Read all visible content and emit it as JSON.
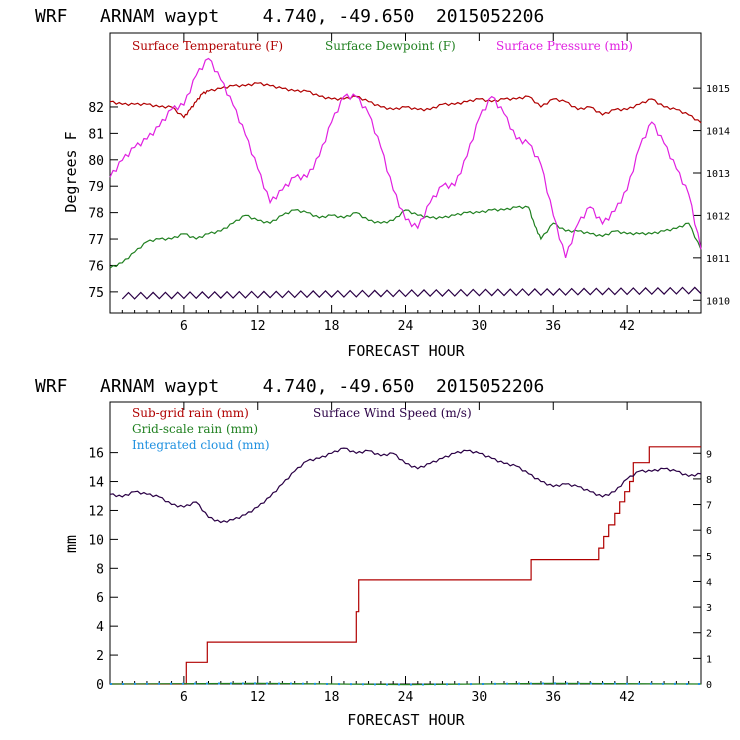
{
  "chart_data": [
    {
      "type": "line",
      "title": "WRF   ARNAM waypt    4.740, -49.650  2015052206",
      "xlabel": "FORECAST HOUR",
      "ylabel": "Degrees F",
      "xlim": [
        0,
        48
      ],
      "ylim": [
        74.2,
        84.8
      ],
      "y2lim": [
        1009.7,
        1016.3
      ],
      "x_ticks": [
        "6",
        "12",
        "18",
        "24",
        "30",
        "36",
        "42"
      ],
      "y_ticks": [
        "75",
        "76",
        "77",
        "78",
        "79",
        "80",
        "81",
        "82"
      ],
      "y2_ticks": [
        "1010",
        "1011",
        "1012",
        "1013",
        "1014",
        "1015"
      ],
      "grid": false,
      "legend_placement": "top-left",
      "series": [
        {
          "name": "Surface Temperature (F)",
          "axis": "left",
          "color": "#b00000",
          "x": [
            0,
            1,
            2,
            3,
            4,
            5,
            6,
            6.5,
            7,
            7.5,
            8,
            9,
            10,
            11,
            12,
            13,
            14,
            15,
            16,
            17,
            18,
            19,
            20,
            21,
            22,
            23,
            24,
            25,
            26,
            27,
            28,
            29,
            30,
            31,
            32,
            33,
            34,
            35,
            36,
            37,
            38,
            39,
            40,
            41,
            42,
            43,
            44,
            45,
            46,
            47,
            48
          ],
          "values": [
            82.2,
            82.1,
            82.1,
            82.1,
            82.0,
            82.0,
            81.6,
            81.9,
            82.2,
            82.5,
            82.6,
            82.7,
            82.8,
            82.8,
            82.9,
            82.8,
            82.7,
            82.6,
            82.6,
            82.4,
            82.3,
            82.3,
            82.4,
            82.2,
            82.0,
            81.9,
            82.0,
            81.9,
            81.9,
            82.1,
            82.1,
            82.2,
            82.3,
            82.2,
            82.3,
            82.3,
            82.4,
            82.0,
            82.3,
            82.2,
            81.9,
            82.0,
            81.7,
            81.9,
            81.9,
            82.1,
            82.3,
            82.0,
            81.9,
            81.7,
            81.4
          ]
        },
        {
          "name": "Surface Dewpoint (F)",
          "axis": "left",
          "color": "#208020",
          "x": [
            0,
            1,
            2,
            3,
            4,
            5,
            6,
            7,
            8,
            9,
            10,
            11,
            12,
            13,
            14,
            15,
            16,
            17,
            18,
            19,
            20,
            21,
            22,
            23,
            24,
            25,
            26,
            27,
            28,
            29,
            30,
            31,
            32,
            33,
            34,
            34.5,
            35,
            36,
            37,
            38,
            39,
            40,
            41,
            42,
            43,
            44,
            45,
            46,
            47,
            48
          ],
          "values": [
            75.9,
            76.1,
            76.5,
            76.9,
            77.0,
            77.0,
            77.2,
            77.0,
            77.2,
            77.3,
            77.6,
            77.9,
            77.7,
            77.6,
            77.9,
            78.1,
            78.0,
            77.8,
            77.9,
            77.8,
            78.0,
            77.7,
            77.6,
            77.7,
            78.1,
            77.9,
            77.8,
            77.8,
            77.9,
            78.0,
            78.0,
            78.1,
            78.1,
            78.2,
            78.2,
            77.5,
            77.0,
            77.6,
            77.3,
            77.3,
            77.2,
            77.1,
            77.3,
            77.2,
            77.2,
            77.2,
            77.3,
            77.4,
            77.6,
            76.6
          ]
        },
        {
          "name": "Surface Pressure (mb)",
          "axis": "right",
          "color": "#e020e0",
          "x": [
            0,
            1,
            2,
            3,
            4,
            5,
            6,
            7,
            8,
            9,
            10,
            11,
            12,
            13,
            14,
            15,
            16,
            17,
            18,
            19,
            20,
            21,
            22,
            23,
            24,
            25,
            26,
            27,
            28,
            29,
            30,
            31,
            32,
            33,
            34,
            35,
            36,
            37,
            38,
            39,
            40,
            41,
            42,
            43,
            44,
            45,
            46,
            47,
            48
          ],
          "values": [
            1012.9,
            1013.3,
            1013.6,
            1013.8,
            1014.1,
            1014.5,
            1014.6,
            1015.3,
            1015.7,
            1015.2,
            1014.6,
            1013.9,
            1013.1,
            1012.3,
            1012.6,
            1012.9,
            1012.9,
            1013.4,
            1014.2,
            1014.8,
            1014.8,
            1014.4,
            1013.6,
            1012.6,
            1011.9,
            1011.7,
            1012.3,
            1012.7,
            1012.7,
            1013.4,
            1014.3,
            1014.8,
            1014.4,
            1013.8,
            1013.7,
            1013.2,
            1012.0,
            1011.0,
            1011.8,
            1012.2,
            1011.8,
            1012.1,
            1012.6,
            1013.6,
            1014.2,
            1013.7,
            1013.1,
            1012.5,
            1011.2
          ]
        },
        {
          "name": "",
          "axis": "left",
          "color": "#2a0045",
          "sawtooth": true,
          "x": [
            1,
            48
          ],
          "values": [
            74.85,
            75.05
          ]
        }
      ]
    },
    {
      "type": "line",
      "title": "WRF   ARNAM waypt    4.740, -49.650  2015052206",
      "xlabel": "FORECAST HOUR",
      "ylabel": "mm",
      "xlim": [
        0,
        48
      ],
      "ylim": [
        0,
        19.5
      ],
      "y2lim": [
        0,
        11
      ],
      "x_ticks": [
        "6",
        "12",
        "18",
        "24",
        "30",
        "36",
        "42"
      ],
      "y_ticks": [
        "0",
        "2",
        "4",
        "6",
        "8",
        "10",
        "12",
        "14",
        "16"
      ],
      "y2_ticks": [
        "0",
        "1",
        "2",
        "3",
        "4",
        "5",
        "6",
        "7",
        "8",
        "9"
      ],
      "grid": false,
      "legend_placement": "top-left",
      "series": [
        {
          "name": "Sub-grid rain (mm)",
          "axis": "left",
          "color": "#b00000",
          "step": true,
          "x": [
            0,
            6.1,
            6.2,
            7.7,
            7.9,
            19.8,
            20.0,
            20.2,
            34.0,
            34.2,
            39.4,
            39.7,
            40.1,
            40.5,
            41.0,
            41.4,
            41.8,
            42.2,
            42.5,
            43.5,
            43.8,
            48
          ],
          "values": [
            0,
            0,
            1.5,
            1.5,
            2.9,
            2.9,
            5.0,
            7.2,
            7.2,
            8.6,
            8.6,
            9.4,
            10.2,
            11.0,
            11.8,
            12.6,
            13.3,
            14.0,
            15.3,
            15.3,
            16.4,
            16.4
          ]
        },
        {
          "name": "Grid-scale rain (mm)",
          "axis": "left",
          "color": "#208020",
          "x": [
            0,
            48
          ],
          "values": [
            0,
            0
          ]
        },
        {
          "name": "Integrated cloud (mm)",
          "axis": "left",
          "color": "#1e90e0",
          "dotted": true,
          "x": [
            0,
            48
          ],
          "values": [
            0,
            0
          ]
        },
        {
          "name": "Surface Wind Speed (m/s)",
          "axis": "right",
          "color": "#2a0045",
          "x": [
            0,
            1,
            2,
            3,
            4,
            5,
            6,
            7,
            8,
            9,
            10,
            11,
            12,
            13,
            14,
            15,
            16,
            17,
            18,
            19,
            20,
            21,
            22,
            23,
            24,
            25,
            26,
            27,
            28,
            29,
            30,
            31,
            32,
            33,
            34,
            35,
            36,
            37,
            38,
            39,
            40,
            41,
            42,
            43,
            44,
            45,
            46,
            47,
            48
          ],
          "values": [
            7.4,
            7.3,
            7.5,
            7.4,
            7.3,
            7.0,
            6.9,
            7.1,
            6.5,
            6.3,
            6.4,
            6.6,
            6.9,
            7.3,
            7.8,
            8.3,
            8.7,
            8.8,
            9.0,
            9.2,
            9.0,
            9.1,
            8.9,
            9.0,
            8.6,
            8.4,
            8.6,
            8.8,
            9.0,
            9.1,
            9.0,
            8.8,
            8.6,
            8.5,
            8.2,
            7.9,
            7.7,
            7.8,
            7.7,
            7.5,
            7.3,
            7.5,
            8.0,
            8.3,
            8.3,
            8.4,
            8.3,
            8.1,
            8.2
          ]
        }
      ]
    }
  ]
}
